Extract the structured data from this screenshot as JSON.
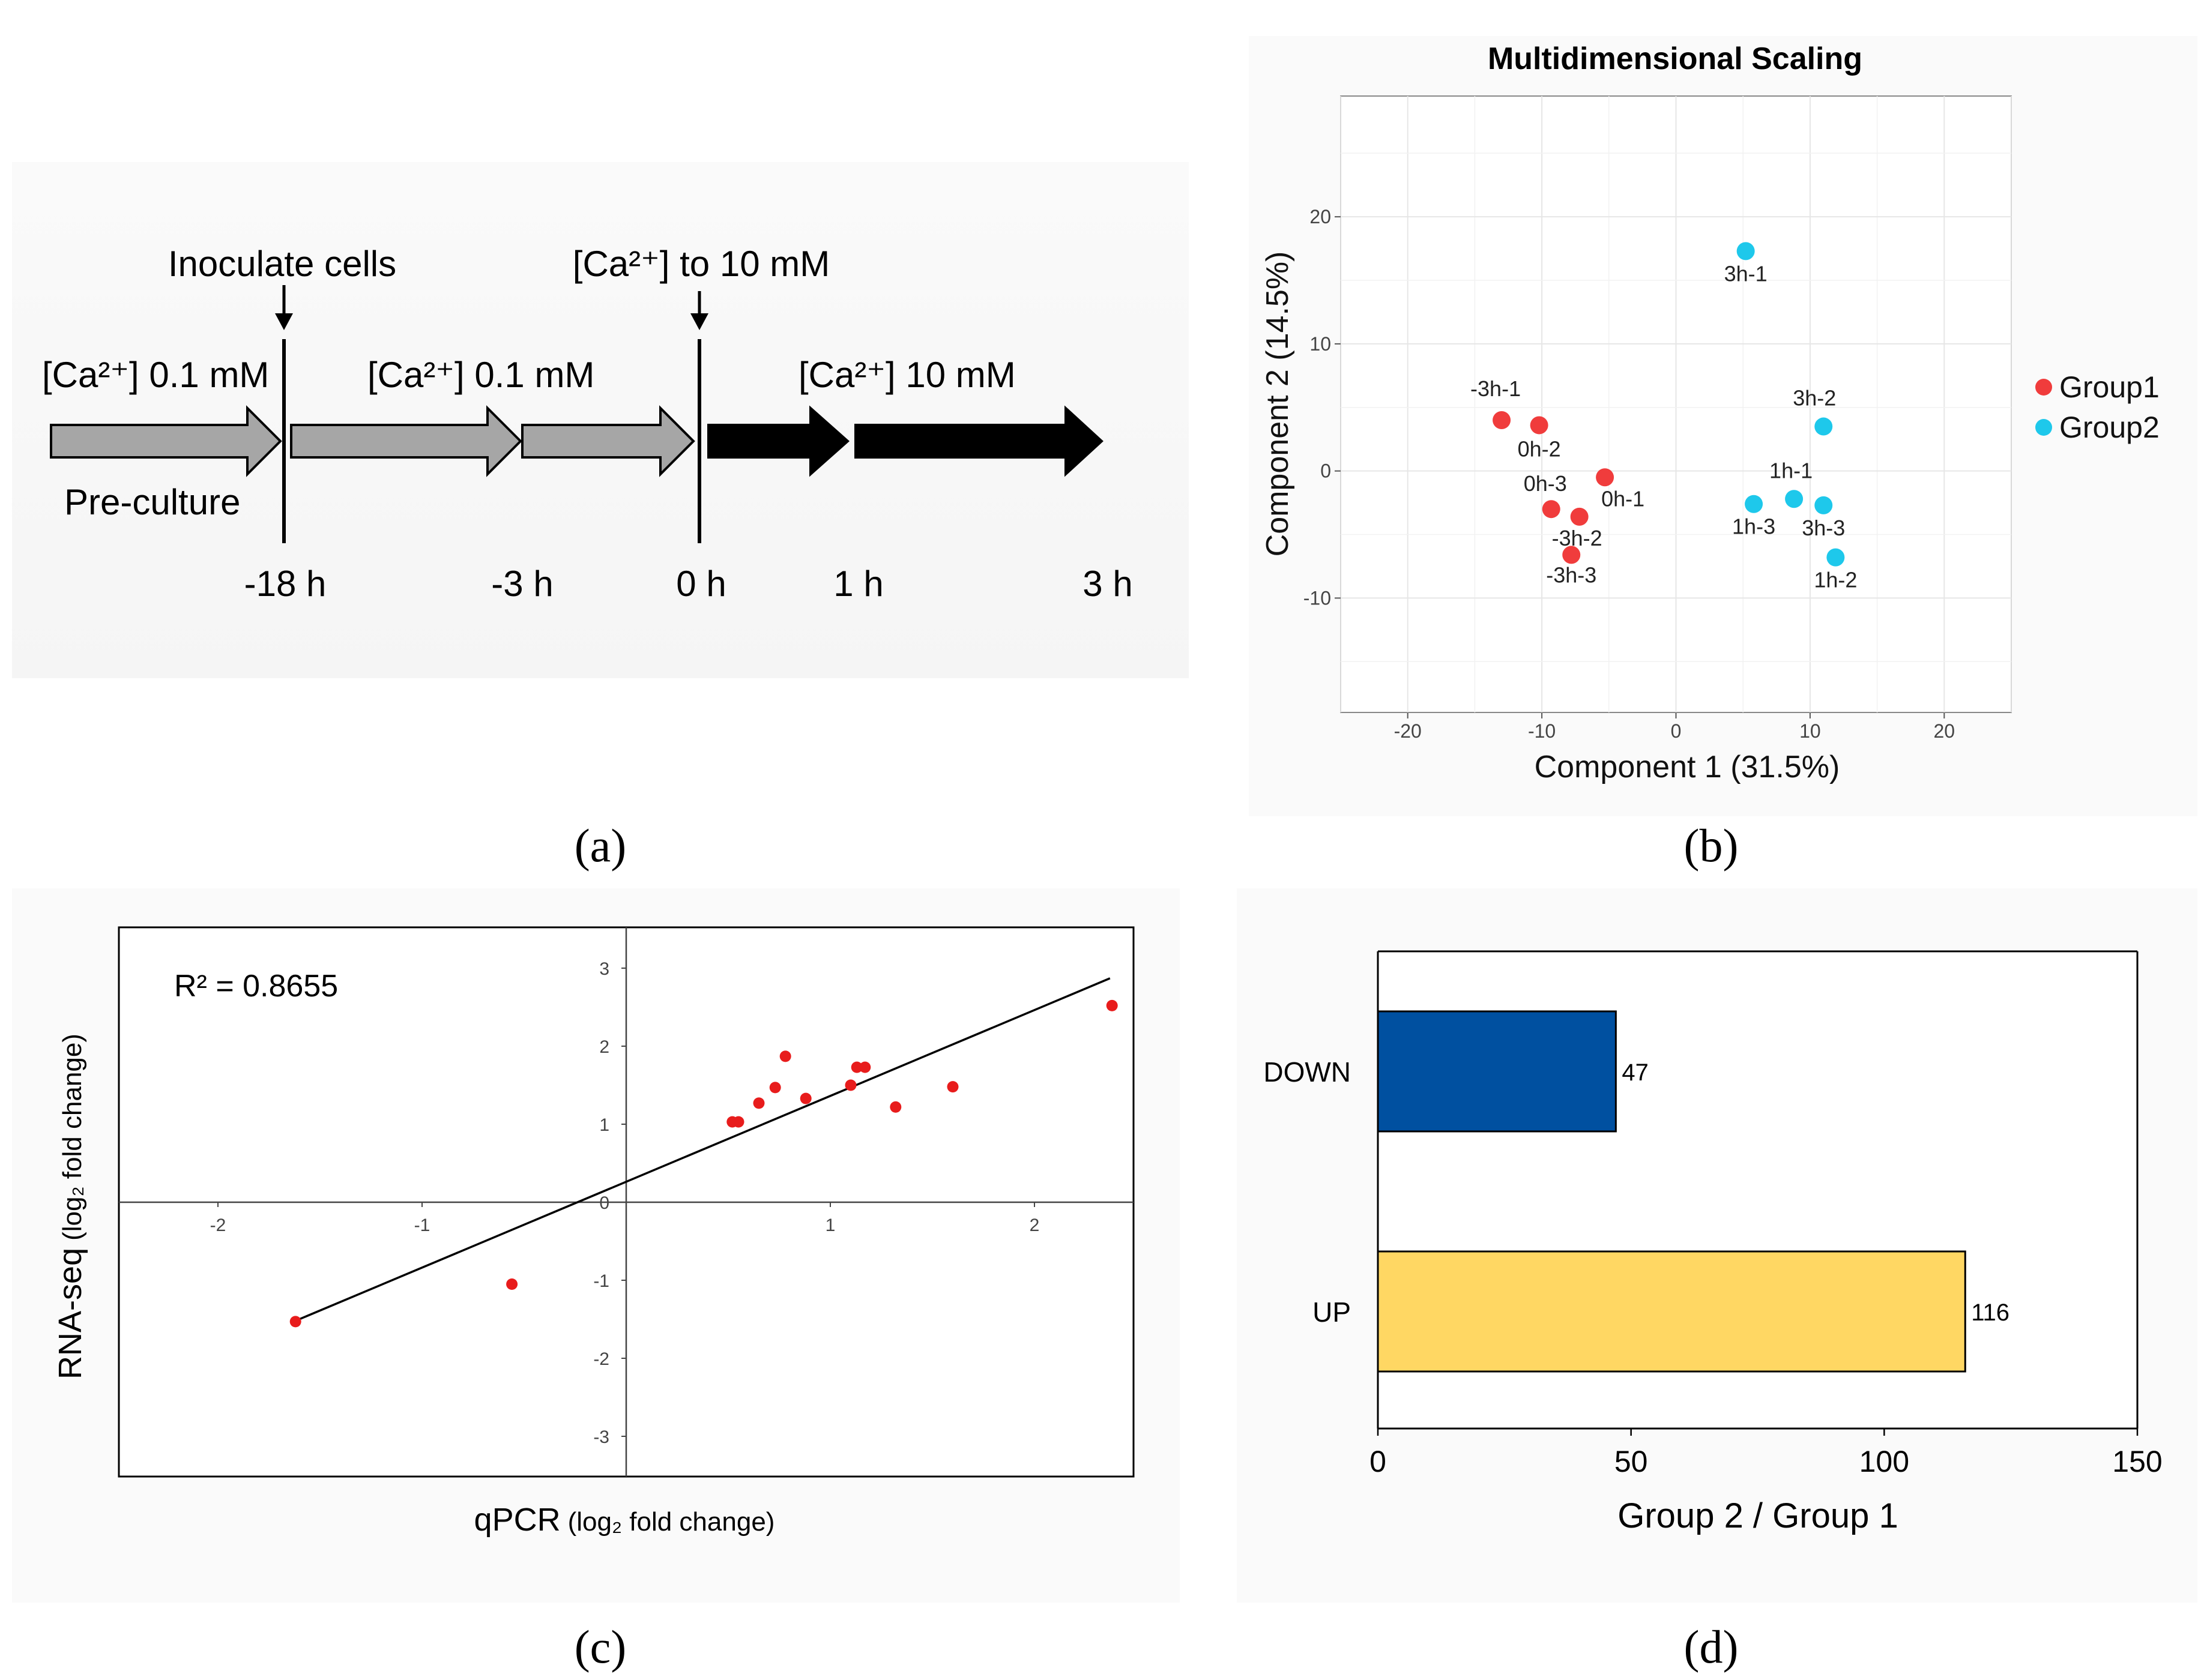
{
  "panel_labels": {
    "a": "(a)",
    "b": "(b)",
    "c": "(c)",
    "d": "(d)"
  },
  "timeline": {
    "events": [
      {
        "label": "Inoculate cells"
      },
      {
        "label": "[Ca²⁺] to 10 mM"
      }
    ],
    "conditions": [
      "[Ca²⁺] 0.1 mM",
      "[Ca²⁺] 0.1 mM",
      "[Ca²⁺] 10 mM"
    ],
    "preculture_label": "Pre-culture",
    "time_labels": [
      "-18 h",
      "-3 h",
      "0 h",
      "1 h",
      "3 h"
    ],
    "colors": {
      "preculture": "#a6a6a6",
      "high_calcium": "#000000"
    }
  },
  "chart_data": [
    {
      "id": "b",
      "type": "scatter",
      "title": "Multidimensional Scaling",
      "xlabel": "Component 1 (31.5%)",
      "ylabel": "Component 2 (14.5%)",
      "xlim": [
        -25,
        25
      ],
      "ylim": [
        -19,
        29.5
      ],
      "xticks": [
        "-20",
        "-10",
        "0",
        "10",
        "20"
      ],
      "yticks": [
        "-10",
        "0",
        "10",
        "20"
      ],
      "grid": true,
      "legend_position": "right",
      "series": [
        {
          "name": "Group1",
          "color": "#f03c3c",
          "points": [
            {
              "label": "-3h-1",
              "x": -13,
              "y": 4
            },
            {
              "label": "0h-2",
              "x": -10.2,
              "y": 3.6
            },
            {
              "label": "0h-1",
              "x": -5.3,
              "y": -0.5
            },
            {
              "label": "0h-3",
              "x": -9.3,
              "y": -3
            },
            {
              "label": "-3h-2",
              "x": -7.2,
              "y": -3.6
            },
            {
              "label": "-3h-3",
              "x": -7.8,
              "y": -6.6
            }
          ]
        },
        {
          "name": "Group2",
          "color": "#1ec8eb",
          "points": [
            {
              "label": "3h-1",
              "x": 5.2,
              "y": 17.3
            },
            {
              "label": "3h-2",
              "x": 11,
              "y": 3.5
            },
            {
              "label": "1h-1",
              "x": 8.8,
              "y": -2.2
            },
            {
              "label": "1h-3",
              "x": 5.8,
              "y": -2.6
            },
            {
              "label": "3h-3",
              "x": 11,
              "y": -2.7
            },
            {
              "label": "1h-2",
              "x": 11.9,
              "y": -6.8
            }
          ]
        }
      ]
    },
    {
      "id": "c",
      "type": "scatter",
      "title": "",
      "xlabel_main": "qPCR",
      "xlabel_units": "(log₂ fold change)",
      "ylabel_main": "RNA-seq",
      "ylabel_units": "(log₂ fold change)",
      "annotation": "R² = 0.8655",
      "xlim": [
        -2.5,
        2.5
      ],
      "ylim": [
        -3.5,
        3.5
      ],
      "xticks": [
        "-2",
        "-1",
        "0",
        "1",
        "2"
      ],
      "yticks": [
        "-3",
        "-2",
        "-1",
        "0",
        "1",
        "2",
        "3"
      ],
      "trendline": {
        "x": [
          -1.62,
          2.37
        ],
        "y": [
          -1.52,
          2.87
        ]
      },
      "point_color": "#e81c1c",
      "points": [
        {
          "x": -1.62,
          "y": -1.53
        },
        {
          "x": -0.56,
          "y": -1.05
        },
        {
          "x": 0.52,
          "y": 1.03
        },
        {
          "x": 0.55,
          "y": 1.03
        },
        {
          "x": 0.65,
          "y": 1.27
        },
        {
          "x": 0.73,
          "y": 1.47
        },
        {
          "x": 0.78,
          "y": 1.87
        },
        {
          "x": 0.88,
          "y": 1.33
        },
        {
          "x": 1.1,
          "y": 1.5
        },
        {
          "x": 1.13,
          "y": 1.73
        },
        {
          "x": 1.17,
          "y": 1.73
        },
        {
          "x": 1.32,
          "y": 1.22
        },
        {
          "x": 1.6,
          "y": 1.48
        },
        {
          "x": 2.38,
          "y": 2.52
        }
      ]
    },
    {
      "id": "d",
      "type": "bar",
      "orientation": "horizontal",
      "categories": [
        "DOWN",
        "UP"
      ],
      "values": [
        47,
        116
      ],
      "colors": [
        "#0050a0",
        "#ffd763"
      ],
      "xlabel": "Group 2 / Group 1",
      "xlim": [
        0,
        150
      ],
      "xticks": [
        "0",
        "50",
        "100",
        "150"
      ],
      "grid": false
    }
  ]
}
